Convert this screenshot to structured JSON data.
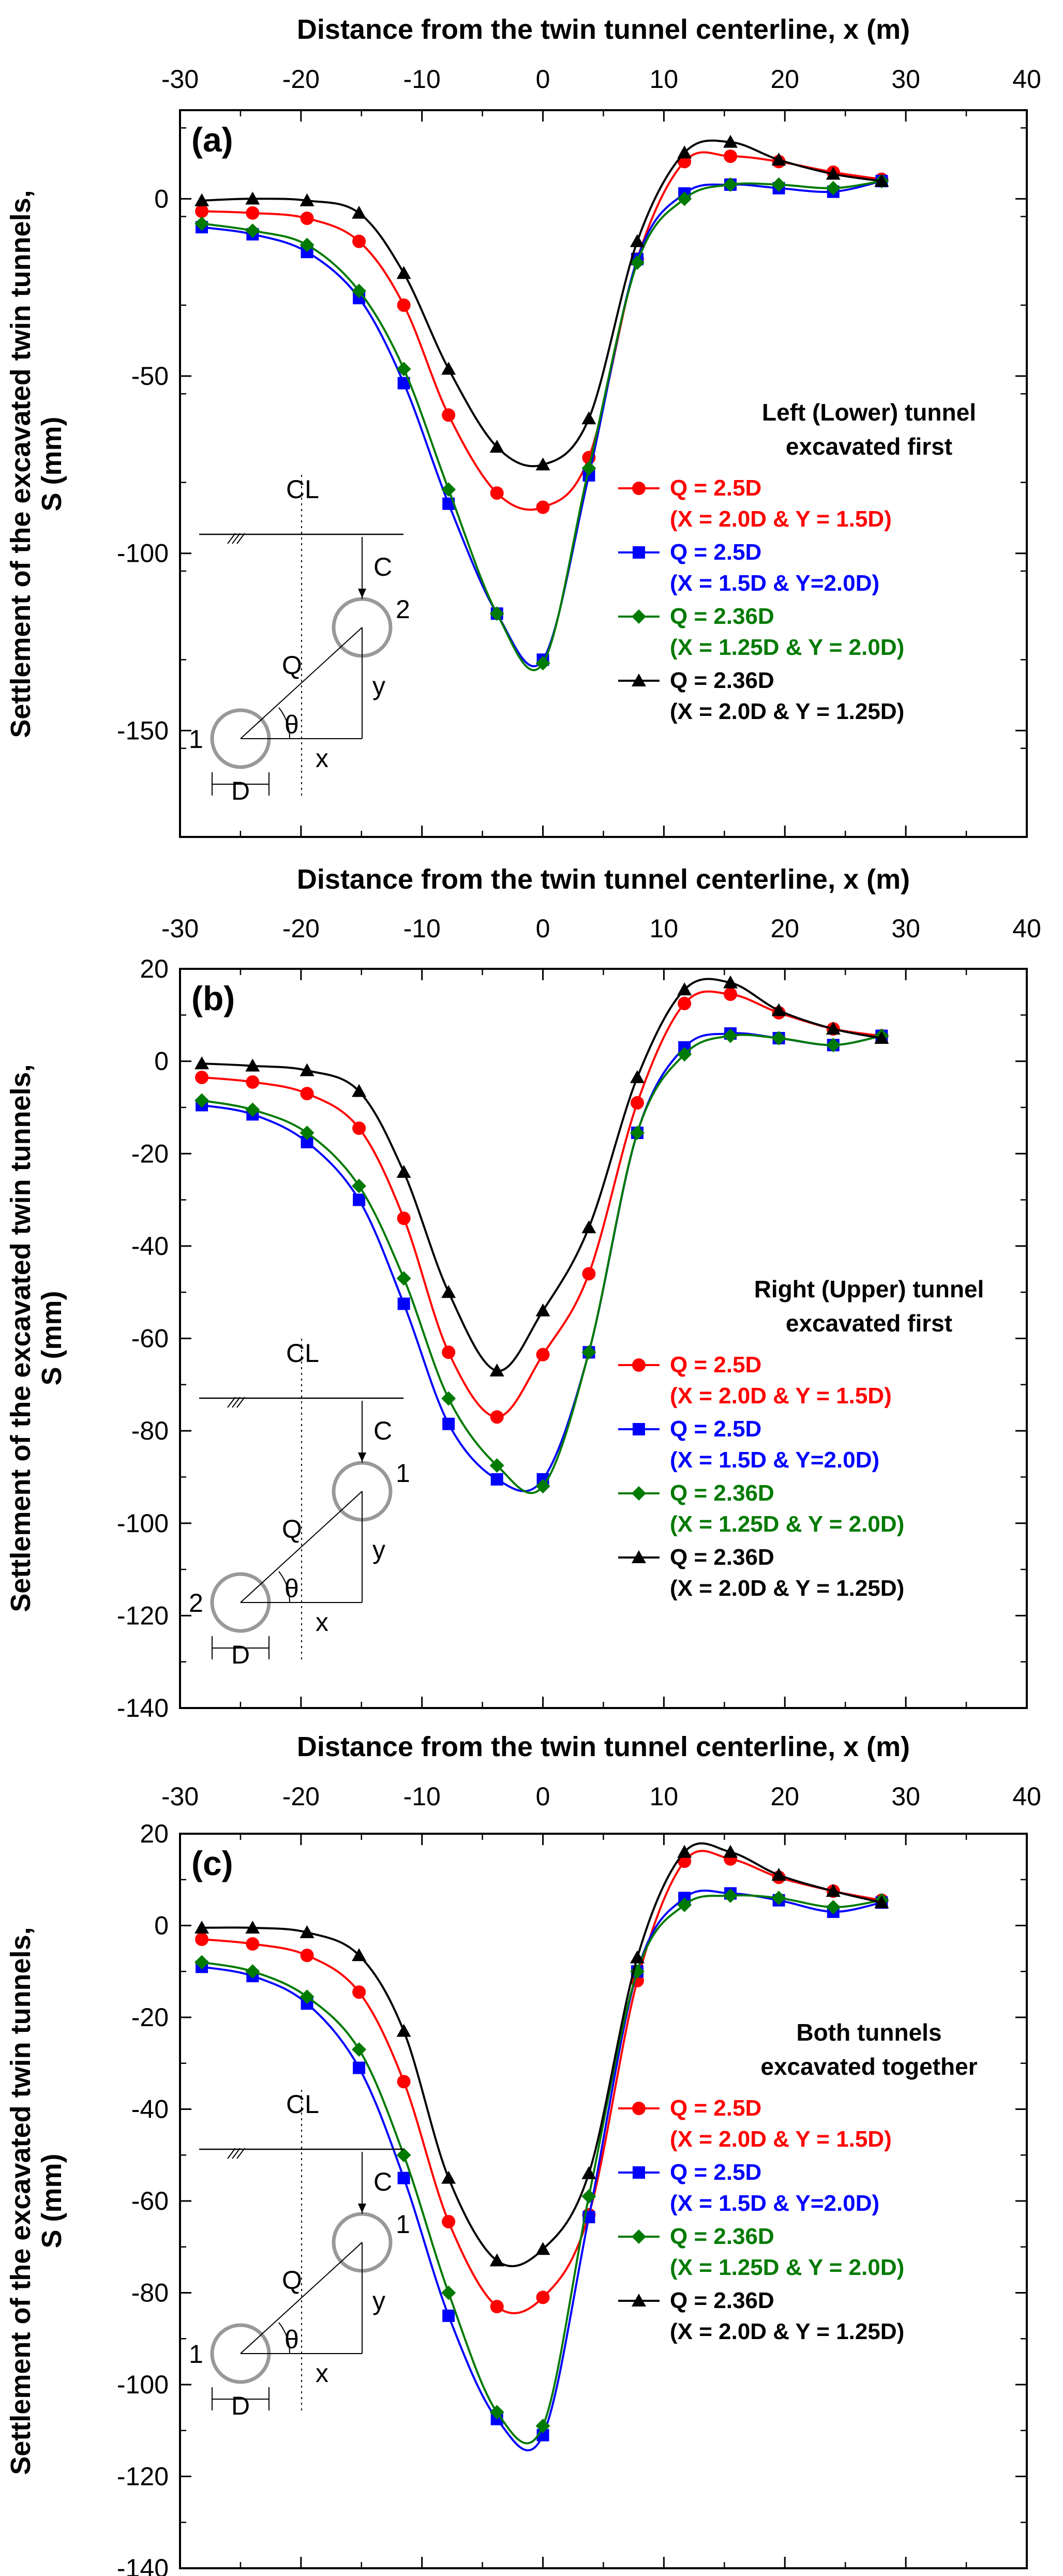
{
  "figure": {
    "ylabel_line1": "Settlement of the excavated twin tunnels,",
    "ylabel_line2": "S (mm)"
  },
  "series_style": [
    {
      "color": "#ff0000",
      "marker": "circle"
    },
    {
      "color": "#0000ff",
      "marker": "square"
    },
    {
      "color": "#007a00",
      "marker": "diamond"
    },
    {
      "color": "#000000",
      "marker": "triangle"
    }
  ],
  "sketch_labels": {
    "centerline": "CL",
    "c": "C",
    "q": "Q",
    "theta": "θ",
    "x": "x",
    "y": "y",
    "d": "D"
  },
  "chart_data": [
    {
      "type": "line",
      "panel_label": "(a)",
      "xlabel": "Distance from the twin tunnel centerline, x (m)",
      "xlim": [
        -30,
        40
      ],
      "xticks": [
        -30,
        -20,
        -10,
        0,
        10,
        20,
        30,
        40
      ],
      "ylim": [
        -180,
        25
      ],
      "yticks": [
        0,
        -50,
        -100,
        -150
      ],
      "note": [
        "Left (Lower) tunnel",
        "excavated first"
      ],
      "tunnel_numbers": {
        "lower": "1",
        "upper": "2"
      },
      "x": [
        -28.2,
        -24,
        -19.5,
        -15.2,
        -11.5,
        -7.8,
        -3.8,
        0,
        3.8,
        7.8,
        11.7,
        15.5,
        19.5,
        24,
        28
      ],
      "series": [
        {
          "name": "Q = 2.5D",
          "detail": "(X = 2.0D & Y = 1.5D)",
          "values": [
            -3.5,
            -4,
            -5.5,
            -12,
            -30,
            -61,
            -83,
            -87,
            -73,
            -17,
            10.5,
            12,
            10.5,
            7.5,
            5.5
          ]
        },
        {
          "name": "Q = 2.5D",
          "detail": "(X = 1.5D & Y=2.0D)",
          "values": [
            -8,
            -10,
            -15,
            -28,
            -52,
            -86,
            -117,
            -130,
            -78,
            -17,
            1.5,
            4,
            3,
            2,
            5
          ]
        },
        {
          "name": "Q = 2.36D",
          "detail": "(X = 1.25D & Y = 2.0D)",
          "values": [
            -7,
            -9,
            -13,
            -26,
            -48,
            -82,
            -117,
            -131,
            -76,
            -18,
            0,
            4,
            4,
            3,
            5
          ]
        },
        {
          "name": "Q = 2.36D",
          "detail": "(X = 2.0D & Y = 1.25D)",
          "values": [
            -0.5,
            0,
            -0.5,
            -4,
            -21,
            -48,
            -70,
            -75,
            -62,
            -12,
            13,
            16,
            11,
            7,
            5
          ]
        }
      ]
    },
    {
      "type": "line",
      "panel_label": "(b)",
      "xlabel": "Distance from the twin tunnel centerline, x (m)",
      "xlim": [
        -30,
        40
      ],
      "xticks": [
        -30,
        -20,
        -10,
        0,
        10,
        20,
        30,
        40
      ],
      "ylim": [
        -140,
        20
      ],
      "yticks": [
        20,
        0,
        -20,
        -40,
        -60,
        -80,
        -100,
        -120,
        -140
      ],
      "note": [
        "Right (Upper) tunnel",
        "excavated first"
      ],
      "tunnel_numbers": {
        "lower": "2",
        "upper": "1"
      },
      "x": [
        -28.2,
        -24,
        -19.5,
        -15.2,
        -11.5,
        -7.8,
        -3.8,
        0,
        3.8,
        7.8,
        11.7,
        15.5,
        19.5,
        24,
        28
      ],
      "series": [
        {
          "name": "Q = 2.5D",
          "detail": "(X = 2.0D & Y = 1.5D)",
          "values": [
            -3.5,
            -4.5,
            -7,
            -14.5,
            -34,
            -63,
            -77,
            -63.5,
            -46,
            -9,
            12.5,
            14.5,
            10.5,
            7,
            5.5
          ]
        },
        {
          "name": "Q = 2.5D",
          "detail": "(X = 1.5D & Y=2.0D)",
          "values": [
            -9.5,
            -11.5,
            -17.5,
            -30,
            -52.5,
            -78.5,
            -90.5,
            -90.5,
            -63,
            -15.5,
            3,
            6,
            5,
            3.5,
            5.5
          ]
        },
        {
          "name": "Q = 2.36D",
          "detail": "(X = 1.25D & Y = 2.0D)",
          "values": [
            -8.5,
            -10.5,
            -15.5,
            -27,
            -47,
            -73,
            -87.5,
            -92,
            -63,
            -15.5,
            1.5,
            5.5,
            5,
            3.5,
            5.5
          ]
        },
        {
          "name": "Q = 2.36D",
          "detail": "(X = 2.0D & Y = 1.25D)",
          "values": [
            -0.5,
            -1,
            -2,
            -6.5,
            -24,
            -50,
            -67,
            -54,
            -36,
            -3.5,
            15.5,
            17,
            11,
            7,
            5
          ]
        }
      ]
    },
    {
      "type": "line",
      "panel_label": "(c)",
      "xlabel": "Distance from the twin tunnel centerline, x (m)",
      "xlim": [
        -30,
        40
      ],
      "xticks": [
        -30,
        -20,
        -10,
        0,
        10,
        20,
        30,
        40
      ],
      "ylim": [
        -140,
        20
      ],
      "yticks": [
        20,
        0,
        -20,
        -40,
        -60,
        -80,
        -100,
        -120,
        -140
      ],
      "note": [
        "Both tunnels",
        "excavated together"
      ],
      "tunnel_numbers": {
        "lower": "1",
        "upper": "1"
      },
      "x": [
        -28.2,
        -24,
        -19.5,
        -15.2,
        -11.5,
        -7.8,
        -3.8,
        0,
        3.8,
        7.8,
        11.7,
        15.5,
        19.5,
        24,
        28
      ],
      "series": [
        {
          "name": "Q = 2.5D",
          "detail": "(X = 2.0D & Y = 1.5D)",
          "values": [
            -3,
            -4,
            -6.5,
            -14.5,
            -34,
            -64.5,
            -83,
            -81,
            -63,
            -12,
            14,
            14.5,
            10.5,
            7.5,
            5.5
          ]
        },
        {
          "name": "Q = 2.5D",
          "detail": "(X = 1.5D & Y=2.0D)",
          "values": [
            -9,
            -11,
            -17,
            -31,
            -55,
            -85,
            -107.5,
            -111,
            -63.5,
            -10,
            6,
            7,
            5.5,
            3,
            5
          ]
        },
        {
          "name": "Q = 2.36D",
          "detail": "(X = 1.25D & Y = 2.0D)",
          "values": [
            -8,
            -10,
            -15.5,
            -27,
            -50,
            -80,
            -106,
            -109,
            -59,
            -10,
            4.5,
            6.5,
            6,
            4,
            5.5
          ]
        },
        {
          "name": "Q = 2.36D",
          "detail": "(X = 2.0D & Y = 1.25D)",
          "values": [
            -0.5,
            -0.5,
            -1.5,
            -6.5,
            -23,
            -55,
            -73,
            -70.5,
            -54,
            -7,
            16,
            16,
            11,
            7.5,
            5
          ]
        }
      ]
    }
  ]
}
